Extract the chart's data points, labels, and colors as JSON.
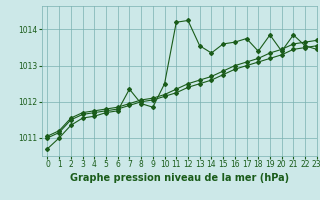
{
  "title": "Graphe pression niveau de la mer (hPa)",
  "bg_color": "#cce8e8",
  "plot_bg_color": "#cce8e8",
  "grid_color": "#7ab0b0",
  "line_color": "#1a5c1a",
  "xlim": [
    -0.5,
    23
  ],
  "ylim": [
    1010.5,
    1014.65
  ],
  "yticks": [
    1011,
    1012,
    1013,
    1014
  ],
  "xticks": [
    0,
    1,
    2,
    3,
    4,
    5,
    6,
    7,
    8,
    9,
    10,
    11,
    12,
    13,
    14,
    15,
    16,
    17,
    18,
    19,
    20,
    21,
    22,
    23
  ],
  "line1_x": [
    0,
    1,
    2,
    3,
    4,
    5,
    6,
    7,
    8,
    9,
    10,
    11,
    12,
    13,
    14,
    15,
    16,
    17,
    18,
    19,
    20,
    21,
    22,
    23
  ],
  "line1_y": [
    1010.7,
    1011.0,
    1011.35,
    1011.55,
    1011.6,
    1011.7,
    1011.75,
    1012.35,
    1011.95,
    1011.85,
    1012.5,
    1014.2,
    1014.25,
    1013.55,
    1013.35,
    1013.6,
    1013.65,
    1013.75,
    1013.4,
    1013.85,
    1013.4,
    1013.85,
    1013.55,
    1013.45
  ],
  "line2_x": [
    0,
    1,
    2,
    3,
    4,
    5,
    6,
    7,
    8,
    9,
    10,
    11,
    12,
    13,
    14,
    15,
    16,
    17,
    18,
    19,
    20,
    21,
    22,
    23
  ],
  "line2_y": [
    1011.0,
    1011.15,
    1011.5,
    1011.65,
    1011.7,
    1011.75,
    1011.8,
    1011.9,
    1012.0,
    1012.05,
    1012.15,
    1012.25,
    1012.4,
    1012.5,
    1012.6,
    1012.75,
    1012.9,
    1013.0,
    1013.1,
    1013.2,
    1013.3,
    1013.45,
    1013.5,
    1013.55
  ],
  "line3_x": [
    0,
    1,
    2,
    3,
    4,
    5,
    6,
    7,
    8,
    9,
    10,
    11,
    12,
    13,
    14,
    15,
    16,
    17,
    18,
    19,
    20,
    21,
    22,
    23
  ],
  "line3_y": [
    1011.05,
    1011.2,
    1011.55,
    1011.7,
    1011.75,
    1011.8,
    1011.85,
    1011.95,
    1012.05,
    1012.1,
    1012.2,
    1012.35,
    1012.5,
    1012.6,
    1012.7,
    1012.85,
    1013.0,
    1013.1,
    1013.2,
    1013.35,
    1013.45,
    1013.6,
    1013.65,
    1013.7
  ],
  "tick_fontsize": 5.5,
  "label_fontsize": 7.0,
  "marker": "D",
  "markersize": 2.0,
  "linewidth": 0.8
}
